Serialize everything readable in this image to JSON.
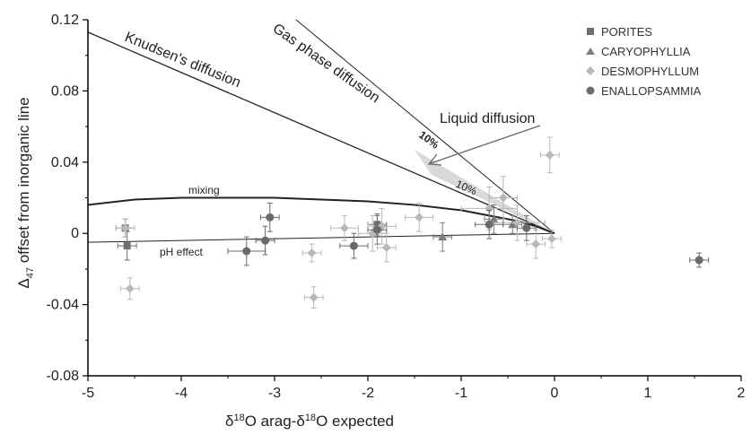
{
  "chart_data": {
    "type": "scatter",
    "xlabel_main": "δ",
    "xlabel_sup1": "18",
    "xlabel_mid": "O arag-δ",
    "xlabel_sup2": "18",
    "xlabel_end": "O expected",
    "ylabel_main": "Δ",
    "ylabel_sub": "47",
    "ylabel_end": " offset from inorganic line",
    "xlim": [
      -5,
      2
    ],
    "ylim": [
      -0.08,
      0.12
    ],
    "xticks": [
      "-5",
      "-4",
      "-3",
      "-2",
      "-1",
      "0",
      "1",
      "2"
    ],
    "yticks": [
      "0.12",
      "0.08",
      "0.04",
      "0",
      "-0.04",
      "-0.08"
    ],
    "legend_position": "top-right",
    "colors": {
      "porites": "#6e6e6e",
      "caryophyllia": "#7e7e7e",
      "desmophyllum": "#b8b8b8",
      "enallopsammia": "#6a6a6a",
      "lines": "#222222",
      "wedge": "#d9d9d9"
    },
    "series": [
      {
        "name": "PORITES",
        "marker": "square",
        "points": [
          {
            "x": -4.6,
            "y": 0.003,
            "xerr": 0.1,
            "yerr": 0.005
          },
          {
            "x": -4.58,
            "y": -0.007,
            "xerr": 0.1,
            "yerr": 0.008
          },
          {
            "x": -1.9,
            "y": 0.005,
            "xerr": 0.1,
            "yerr": 0.006
          }
        ]
      },
      {
        "name": "CARYOPHYLLIA",
        "marker": "triangle",
        "points": [
          {
            "x": -1.2,
            "y": -0.002,
            "xerr": 0.1,
            "yerr": 0.008
          },
          {
            "x": -0.65,
            "y": 0.008,
            "xerr": 0.1,
            "yerr": 0.008
          },
          {
            "x": -0.45,
            "y": 0.005,
            "xerr": 0.1,
            "yerr": 0.005
          }
        ]
      },
      {
        "name": "DESMOPHYLLUM",
        "marker": "diamond",
        "points": [
          {
            "x": -4.6,
            "y": 0.003,
            "xerr": 0.1,
            "yerr": 0.005
          },
          {
            "x": -4.55,
            "y": -0.031,
            "xerr": 0.1,
            "yerr": 0.006
          },
          {
            "x": -2.6,
            "y": -0.011,
            "xerr": 0.1,
            "yerr": 0.005
          },
          {
            "x": -2.58,
            "y": -0.036,
            "xerr": 0.1,
            "yerr": 0.006
          },
          {
            "x": -2.25,
            "y": 0.003,
            "xerr": 0.15,
            "yerr": 0.007
          },
          {
            "x": -1.95,
            "y": 0.0,
            "xerr": 0.15,
            "yerr": 0.01
          },
          {
            "x": -1.85,
            "y": 0.004,
            "xerr": 0.15,
            "yerr": 0.01
          },
          {
            "x": -1.8,
            "y": -0.008,
            "xerr": 0.1,
            "yerr": 0.008
          },
          {
            "x": -1.45,
            "y": 0.009,
            "xerr": 0.15,
            "yerr": 0.008
          },
          {
            "x": -0.7,
            "y": 0.014,
            "xerr": 0.3,
            "yerr": 0.012
          },
          {
            "x": -0.55,
            "y": 0.02,
            "xerr": 0.15,
            "yerr": 0.012
          },
          {
            "x": -0.4,
            "y": 0.006,
            "xerr": 0.3,
            "yerr": 0.01
          },
          {
            "x": -0.2,
            "y": -0.006,
            "xerr": 0.1,
            "yerr": 0.008
          },
          {
            "x": -0.05,
            "y": 0.044,
            "xerr": 0.1,
            "yerr": 0.01
          },
          {
            "x": -0.03,
            "y": -0.003,
            "xerr": 0.1,
            "yerr": 0.005
          }
        ]
      },
      {
        "name": "ENALLOPSAMMIA",
        "marker": "circle",
        "points": [
          {
            "x": -3.3,
            "y": -0.01,
            "xerr": 0.2,
            "yerr": 0.008
          },
          {
            "x": -3.1,
            "y": -0.004,
            "xerr": 0.1,
            "yerr": 0.008
          },
          {
            "x": -3.05,
            "y": 0.009,
            "xerr": 0.1,
            "yerr": 0.008
          },
          {
            "x": -2.15,
            "y": -0.007,
            "xerr": 0.15,
            "yerr": 0.007
          },
          {
            "x": -1.9,
            "y": 0.002,
            "xerr": 0.1,
            "yerr": 0.008
          },
          {
            "x": -0.7,
            "y": 0.005,
            "xerr": 0.15,
            "yerr": 0.008
          },
          {
            "x": -0.3,
            "y": 0.003,
            "xerr": 0.1,
            "yerr": 0.007
          },
          {
            "x": 1.55,
            "y": -0.015,
            "xerr": 0.1,
            "yerr": 0.004
          }
        ]
      }
    ],
    "lines": [
      {
        "label": "Knudsen's diffusion",
        "x": [
          -5,
          0
        ],
        "y": [
          0.113,
          0
        ]
      },
      {
        "label": "Gas phase diffusion",
        "x": [
          -2.77,
          0
        ],
        "y": [
          0.12,
          0
        ]
      },
      {
        "label": "pH effect",
        "x": [
          -5,
          0
        ],
        "y": [
          -0.005,
          0
        ]
      }
    ],
    "mixing_curve": {
      "label": "mixing",
      "x": [
        -5,
        -4.5,
        -4,
        -3.5,
        -3,
        -2.5,
        -2,
        -1.5,
        -1,
        -0.7,
        -0.4,
        -0.2,
        -0.1,
        0
      ],
      "y": [
        0.016,
        0.019,
        0.02,
        0.02,
        0.02,
        0.019,
        0.018,
        0.016,
        0.013,
        0.01,
        0.007,
        0.004,
        0.002,
        0
      ]
    },
    "liquid_diffusion": {
      "label": "Liquid diffusion",
      "pct_upper": "10%",
      "pct_lower": "10%",
      "wedge_x": [
        -1.5,
        -1.32,
        0
      ],
      "wedge_y": [
        0.047,
        0.033,
        0
      ]
    }
  }
}
